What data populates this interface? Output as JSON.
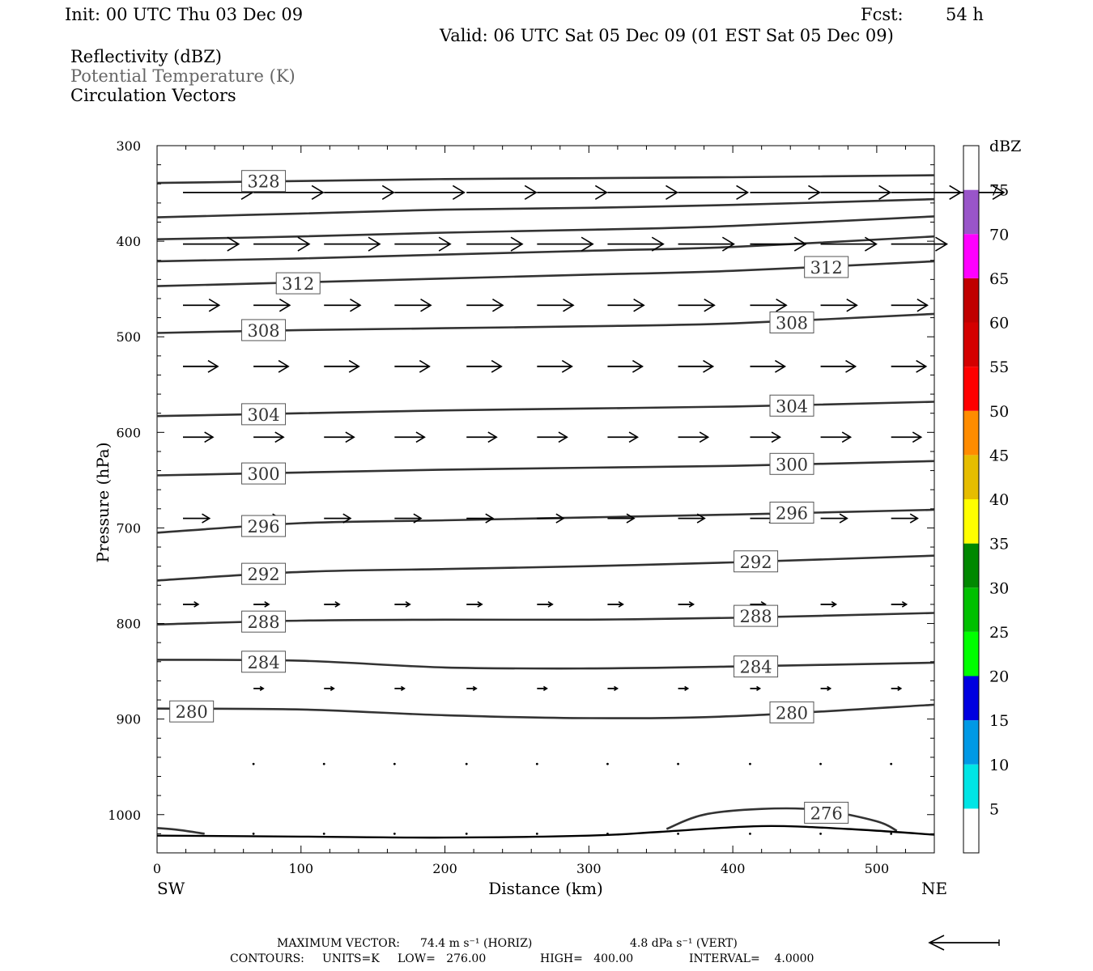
{
  "header": {
    "init": "Init: 00 UTC Thu 03 Dec 09",
    "fcst_label": "Fcst:",
    "fcst_value": "54 h",
    "valid": "Valid: 06 UTC Sat 05 Dec 09 (01 EST Sat 05 Dec 09)",
    "field1": "Reflectivity (dBZ)",
    "field2": "Potential Temperature (K)",
    "field3": "Circulation Vectors"
  },
  "footer": {
    "max_vector_label": "MAXIMUM VECTOR:",
    "max_vector_horiz": "74.4 m s⁻¹ (HORIZ)",
    "max_vector_vert": "4.8 dPa s⁻¹ (VERT)",
    "contours_label": "CONTOURS:",
    "units": "UNITS=K",
    "low": "LOW=   276.00",
    "high": "HIGH=   400.00",
    "interval": "INTERVAL=    4.0000"
  },
  "colors": {
    "contour": "#333333",
    "vector": "#000000",
    "gray_text": "#666666"
  },
  "chart_data": {
    "type": "cross-section",
    "xlabel": "Distance (km)",
    "ylabel": "Pressure (hPa)",
    "x_left_label": "SW",
    "x_right_label": "NE",
    "xlim": [
      0,
      540
    ],
    "ylim": [
      300,
      1040
    ],
    "y_inverted": true,
    "x_ticks": [
      0,
      100,
      200,
      300,
      400,
      500
    ],
    "y_ticks": [
      300,
      400,
      500,
      600,
      700,
      800,
      900,
      1000
    ],
    "colorbar": {
      "unit_label": "dBZ",
      "levels": [
        5,
        10,
        15,
        20,
        25,
        30,
        35,
        40,
        45,
        50,
        55,
        60,
        65,
        70,
        75
      ],
      "colors": [
        "#ffffff",
        "#00e5e5",
        "#0099e5",
        "#0000e0",
        "#00ff00",
        "#00c000",
        "#008800",
        "#ffff00",
        "#e6bd00",
        "#ff8c00",
        "#ff0000",
        "#d40000",
        "#c00000",
        "#ff00ff",
        "#9955c9",
        "#ffffff"
      ]
    },
    "contour_labels": [
      {
        "value": "328",
        "x": 74,
        "p": 337
      },
      {
        "value": "312",
        "x": 98,
        "p": 444
      },
      {
        "value": "312",
        "x": 465,
        "p": 427
      },
      {
        "value": "308",
        "x": 74,
        "p": 493
      },
      {
        "value": "308",
        "x": 441,
        "p": 485
      },
      {
        "value": "304",
        "x": 74,
        "p": 581
      },
      {
        "value": "304",
        "x": 441,
        "p": 572
      },
      {
        "value": "300",
        "x": 74,
        "p": 643
      },
      {
        "value": "300",
        "x": 441,
        "p": 633
      },
      {
        "value": "296",
        "x": 74,
        "p": 698
      },
      {
        "value": "296",
        "x": 441,
        "p": 684
      },
      {
        "value": "292",
        "x": 74,
        "p": 748
      },
      {
        "value": "292",
        "x": 416,
        "p": 735
      },
      {
        "value": "288",
        "x": 74,
        "p": 798
      },
      {
        "value": "288",
        "x": 416,
        "p": 792
      },
      {
        "value": "284",
        "x": 74,
        "p": 840
      },
      {
        "value": "284",
        "x": 416,
        "p": 845
      },
      {
        "value": "280",
        "x": 24,
        "p": 892
      },
      {
        "value": "280",
        "x": 441,
        "p": 893
      },
      {
        "value": "276",
        "x": 465,
        "p": 998
      }
    ],
    "contours": [
      [
        [
          0,
          339
        ],
        [
          100,
          337
        ],
        [
          200,
          335
        ],
        [
          300,
          334
        ],
        [
          400,
          333
        ],
        [
          540,
          331
        ]
      ],
      [
        [
          0,
          375
        ],
        [
          100,
          371
        ],
        [
          200,
          367
        ],
        [
          300,
          365
        ],
        [
          400,
          362
        ],
        [
          540,
          356
        ]
      ],
      [
        [
          0,
          398
        ],
        [
          100,
          395
        ],
        [
          200,
          391
        ],
        [
          300,
          388
        ],
        [
          400,
          384
        ],
        [
          540,
          374
        ]
      ],
      [
        [
          0,
          421
        ],
        [
          100,
          418
        ],
        [
          200,
          414
        ],
        [
          300,
          410
        ],
        [
          400,
          406
        ],
        [
          540,
          395
        ]
      ],
      [
        [
          0,
          447
        ],
        [
          100,
          443
        ],
        [
          200,
          439
        ],
        [
          300,
          435
        ],
        [
          400,
          431
        ],
        [
          540,
          421
        ]
      ],
      [
        [
          0,
          496
        ],
        [
          100,
          493
        ],
        [
          200,
          491
        ],
        [
          300,
          489
        ],
        [
          400,
          486
        ],
        [
          540,
          476
        ]
      ],
      [
        [
          0,
          583
        ],
        [
          100,
          580
        ],
        [
          200,
          577
        ],
        [
          300,
          575
        ],
        [
          400,
          573
        ],
        [
          540,
          568
        ]
      ],
      [
        [
          0,
          645
        ],
        [
          100,
          642
        ],
        [
          200,
          639
        ],
        [
          300,
          637
        ],
        [
          400,
          635
        ],
        [
          540,
          630
        ]
      ],
      [
        [
          0,
          705
        ],
        [
          100,
          695
        ],
        [
          200,
          692
        ],
        [
          300,
          689
        ],
        [
          400,
          686
        ],
        [
          540,
          681
        ]
      ],
      [
        [
          0,
          755
        ],
        [
          100,
          746
        ],
        [
          200,
          743
        ],
        [
          300,
          740
        ],
        [
          400,
          736
        ],
        [
          540,
          729
        ]
      ],
      [
        [
          0,
          801
        ],
        [
          100,
          797
        ],
        [
          200,
          796
        ],
        [
          300,
          796
        ],
        [
          400,
          794
        ],
        [
          540,
          789
        ]
      ],
      [
        [
          0,
          838
        ],
        [
          100,
          839
        ],
        [
          200,
          846
        ],
        [
          300,
          847
        ],
        [
          400,
          845
        ],
        [
          540,
          841
        ]
      ],
      [
        [
          0,
          889
        ],
        [
          100,
          890
        ],
        [
          200,
          896
        ],
        [
          300,
          899
        ],
        [
          400,
          897
        ],
        [
          540,
          885
        ]
      ],
      [
        [
          0,
          1014
        ],
        [
          15,
          1016
        ],
        [
          33,
          1020
        ]
      ],
      [
        [
          354,
          1015
        ],
        [
          380,
          1000
        ],
        [
          420,
          994
        ],
        [
          460,
          995
        ],
        [
          500,
          1007
        ],
        [
          514,
          1017
        ]
      ]
    ],
    "terrain": [
      [
        0,
        1022
      ],
      [
        100,
        1023
      ],
      [
        200,
        1024
      ],
      [
        300,
        1022
      ],
      [
        350,
        1018
      ],
      [
        420,
        1012
      ],
      [
        480,
        1015
      ],
      [
        540,
        1021
      ]
    ],
    "vectors": [
      {
        "p": 349,
        "len": 1.0,
        "xs": [
          18,
          67,
          116,
          165,
          215,
          264,
          313,
          362,
          412,
          461,
          510,
          540
        ]
      },
      {
        "p": 403,
        "len": 0.8,
        "xs": [
          18,
          67,
          116,
          165,
          215,
          264,
          313,
          362,
          412,
          461,
          510
        ]
      },
      {
        "p": 467,
        "len": 0.52,
        "xs": [
          18,
          67,
          116,
          165,
          215,
          264,
          313,
          362,
          412,
          461,
          510
        ]
      },
      {
        "p": 531,
        "len": 0.5,
        "xs": [
          18,
          67,
          116,
          165,
          215,
          264,
          313,
          362,
          412,
          461,
          510
        ]
      },
      {
        "p": 605,
        "len": 0.43,
        "xs": [
          18,
          67,
          116,
          165,
          215,
          264,
          313,
          362,
          412,
          461,
          510
        ]
      },
      {
        "p": 690,
        "len": 0.38,
        "xs": [
          18,
          67,
          116,
          165,
          215,
          264,
          313,
          362,
          412,
          461,
          510
        ]
      },
      {
        "p": 780,
        "len": 0.22,
        "xs": [
          18,
          67,
          116,
          165,
          215,
          264,
          313,
          362,
          412,
          461,
          510
        ]
      },
      {
        "p": 868,
        "len": 0.14,
        "xs": [
          67,
          116,
          165,
          215,
          264,
          313,
          362,
          412,
          461,
          510
        ]
      },
      {
        "p": 947,
        "len": 0.03,
        "xs": [
          67,
          116,
          165,
          215,
          264,
          313,
          362,
          412,
          461,
          510
        ]
      },
      {
        "p": 1020,
        "len": 0.01,
        "xs": [
          67,
          116,
          165,
          215,
          264,
          313,
          362,
          412,
          461,
          510
        ]
      }
    ]
  }
}
